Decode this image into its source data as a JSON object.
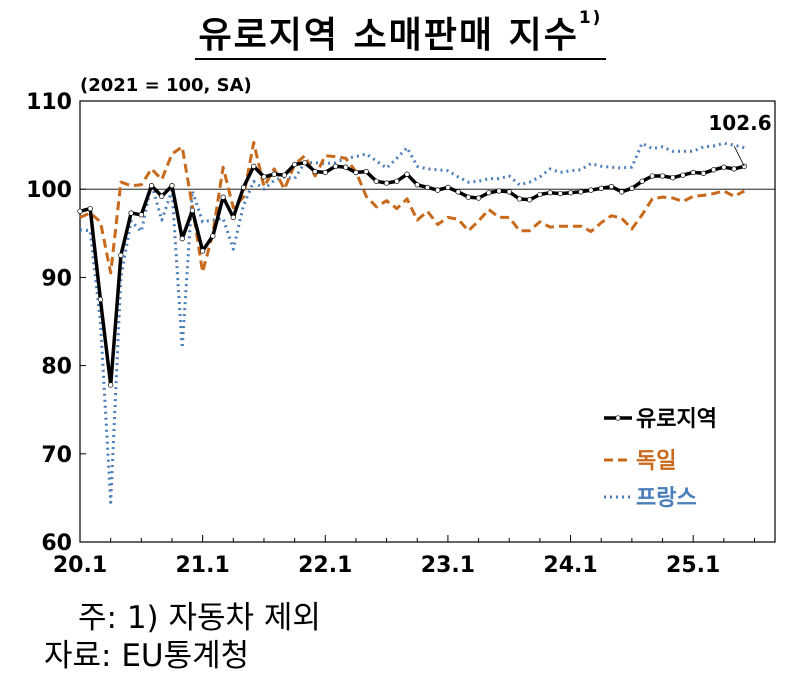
{
  "title": {
    "main": "유로지역 소매판매 지수",
    "footnote_mark": "1)"
  },
  "chart_data": {
    "type": "line",
    "unit_label": "(2021 = 100, SA)",
    "annotation": "102.6",
    "ylim": [
      60,
      110
    ],
    "yticks": [
      "60",
      "70",
      "80",
      "90",
      "100",
      "110"
    ],
    "ytick_values": [
      60,
      70,
      80,
      90,
      100,
      110
    ],
    "xlim": [
      2020.0,
      2025.667
    ],
    "xticks": [
      "20.1",
      "21.1",
      "22.1",
      "23.1",
      "24.1",
      "25.1"
    ],
    "xtick_values": [
      2020.0,
      2021.0,
      2022.0,
      2023.0,
      2024.0,
      2025.0
    ],
    "reference_line": 100,
    "start_year": 2020,
    "series": [
      {
        "name": "유로지역",
        "color": "#000000",
        "style": "solid-markers",
        "values": [
          97.5,
          97.8,
          87.5,
          77.8,
          92.5,
          97.3,
          97.1,
          100.4,
          99.2,
          100.4,
          94.4,
          97.6,
          93.0,
          94.7,
          99.1,
          96.8,
          100.2,
          102.6,
          101.4,
          101.7,
          101.6,
          102.8,
          103.0,
          102.0,
          101.9,
          102.6,
          102.5,
          101.9,
          102.0,
          100.9,
          100.7,
          100.9,
          101.7,
          100.5,
          100.2,
          99.9,
          100.2,
          99.7,
          99.1,
          99.0,
          99.6,
          99.8,
          99.7,
          98.9,
          98.8,
          99.4,
          99.6,
          99.5,
          99.6,
          99.7,
          99.9,
          100.1,
          100.3,
          99.7,
          100.1,
          100.9,
          101.5,
          101.5,
          101.3,
          101.6,
          101.9,
          101.8,
          102.2,
          102.5,
          102.3,
          102.6
        ]
      },
      {
        "name": "독일",
        "color": "#C8691C",
        "style": "dashed",
        "values": [
          96.8,
          97.3,
          96.3,
          90.5,
          100.8,
          100.4,
          100.5,
          102.3,
          101.1,
          104.0,
          104.8,
          98.0,
          90.6,
          95.0,
          102.5,
          97.9,
          99.1,
          105.3,
          100.3,
          102.3,
          100.0,
          102.8,
          103.8,
          101.5,
          103.8,
          103.7,
          103.5,
          102.0,
          99.2,
          98.0,
          98.7,
          97.8,
          98.9,
          96.5,
          97.5,
          96.0,
          96.8,
          96.6,
          95.3,
          96.4,
          97.7,
          96.8,
          96.8,
          95.3,
          95.3,
          96.3,
          95.7,
          95.8,
          95.8,
          95.8,
          95.2,
          96.2,
          97.0,
          96.7,
          95.5,
          97.1,
          98.9,
          99.1,
          99.0,
          98.6,
          99.2,
          99.3,
          99.5,
          99.8,
          99.2,
          99.8
        ]
      },
      {
        "name": "프랑스",
        "color": "#4A7EBB",
        "style": "dotted",
        "values": [
          95.4,
          95.3,
          85.0,
          64.5,
          90.0,
          96.4,
          95.2,
          100.6,
          96.5,
          99.9,
          82.0,
          99.8,
          96.3,
          96.5,
          96.7,
          93.2,
          98.2,
          100.9,
          100.0,
          101.0,
          101.4,
          101.2,
          103.0,
          103.0,
          102.9,
          103.0,
          103.5,
          103.7,
          104.0,
          103.2,
          102.4,
          103.5,
          104.7,
          102.6,
          102.3,
          102.2,
          102.1,
          101.4,
          100.8,
          100.9,
          101.2,
          101.2,
          101.5,
          100.5,
          100.8,
          101.4,
          102.3,
          101.9,
          102.1,
          102.2,
          102.9,
          102.6,
          102.5,
          102.4,
          102.5,
          105.2,
          104.6,
          104.8,
          104.3,
          104.3,
          104.3,
          104.8,
          104.9,
          105.2,
          105.0,
          104.7
        ]
      }
    ],
    "legend_position": "bottom-right"
  },
  "notes": {
    "footnote": "주:  1)  자동차  제외",
    "source": "자료:  EU통계청"
  }
}
